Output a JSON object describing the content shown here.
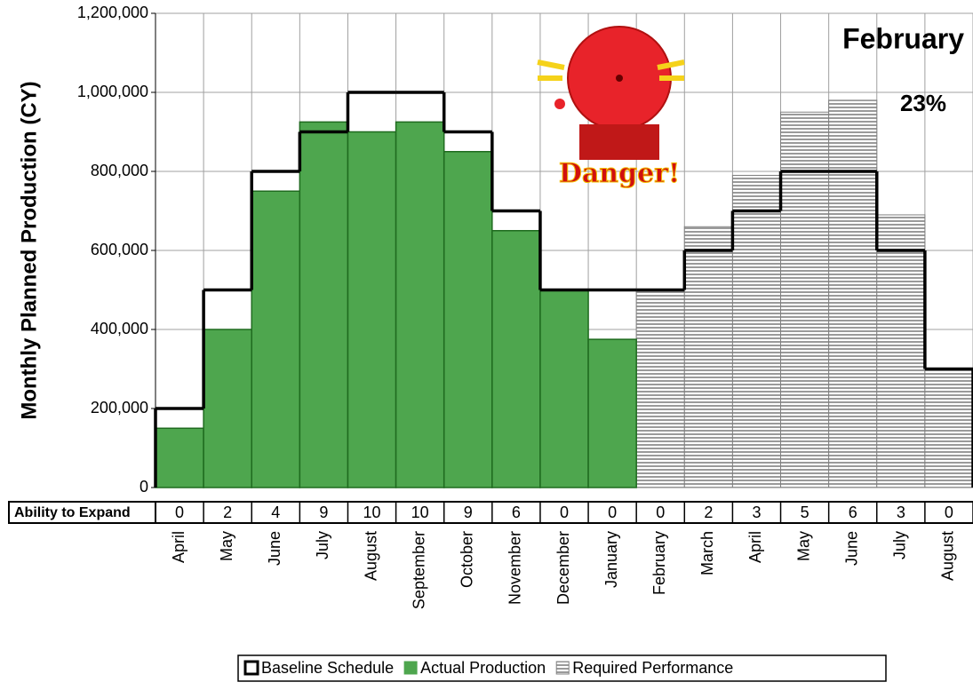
{
  "chart_data": {
    "type": "bar",
    "y_label": "Monthly Planned Production (CY)",
    "annotations": [
      "February",
      "23%",
      "Danger!"
    ],
    "categories": [
      "April",
      "May",
      "June",
      "July",
      "August",
      "September",
      "October",
      "November",
      "December",
      "January",
      "February",
      "March",
      "April",
      "May",
      "June",
      "July",
      "August"
    ],
    "series": [
      {
        "name": "Baseline Schedule",
        "color": "#000000",
        "values": [
          200000,
          500000,
          800000,
          900000,
          1000000,
          1000000,
          900000,
          700000,
          500000,
          500000,
          500000,
          600000,
          700000,
          800000,
          800000,
          600000,
          300000
        ]
      },
      {
        "name": "Actual Production",
        "color": "#4ea64e",
        "values": [
          150000,
          400000,
          750000,
          925000,
          900000,
          925000,
          850000,
          650000,
          500000,
          375000,
          null,
          null,
          null,
          null,
          null,
          null,
          null
        ]
      },
      {
        "name": "Required Performance",
        "color": "#808080",
        "values": [
          null,
          null,
          null,
          null,
          null,
          null,
          null,
          null,
          null,
          null,
          500000,
          660000,
          790000,
          950000,
          980000,
          690000,
          300000
        ]
      }
    ],
    "table": {
      "label": "Ability to Expand",
      "values": [
        0,
        2,
        4,
        9,
        10,
        10,
        9,
        6,
        0,
        0,
        0,
        2,
        3,
        5,
        6,
        3,
        0
      ]
    },
    "ylim": [
      0,
      1200000
    ],
    "yticks": [
      0,
      {
        "value": 200000,
        "label": "200,000"
      },
      {
        "value": 400000,
        "label": "400,000"
      },
      {
        "value": 600000,
        "label": "600,000"
      },
      {
        "value": 800000,
        "label": "800,000"
      },
      {
        "value": 1000000,
        "label": "1,000,000"
      },
      {
        "value": 1200000,
        "label": "1,200,000"
      }
    ],
    "grid": true
  }
}
